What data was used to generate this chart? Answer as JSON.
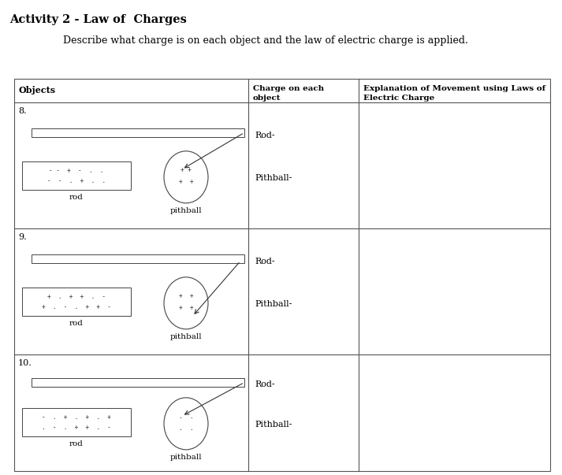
{
  "title": "Activity 2 - Law of  Charges",
  "subtitle": "Describe what charge is on each object and the law of electric charge is applied.",
  "background_color": "#ffffff",
  "rows": [
    {
      "label": "8.",
      "rod_signs_top": "- -  +  -  .  .",
      "rod_signs_bot": "-  -  .  +  .  .",
      "ball_signs_top": "+ +",
      "ball_signs_bot": "+  +",
      "arrow_dir": "toward_rod",
      "ball_double": false
    },
    {
      "label": "9.",
      "rod_signs_top": "+  .  +  +  .  -",
      "rod_signs_bot": "+  .  -  .  +  +  -",
      "ball_signs_top": "+  +",
      "ball_signs_bot": "+  +",
      "arrow_dir": "away_from_rod",
      "ball_double": false
    },
    {
      "label": "10.",
      "rod_signs_top": "-  .  +  .  +  .  +",
      "rod_signs_bot": ".  -  .  +  +  .  -",
      "ball_signs_top": ".  .",
      "ball_signs_bot": ".  .",
      "arrow_dir": "toward_rod",
      "ball_double": false
    }
  ]
}
